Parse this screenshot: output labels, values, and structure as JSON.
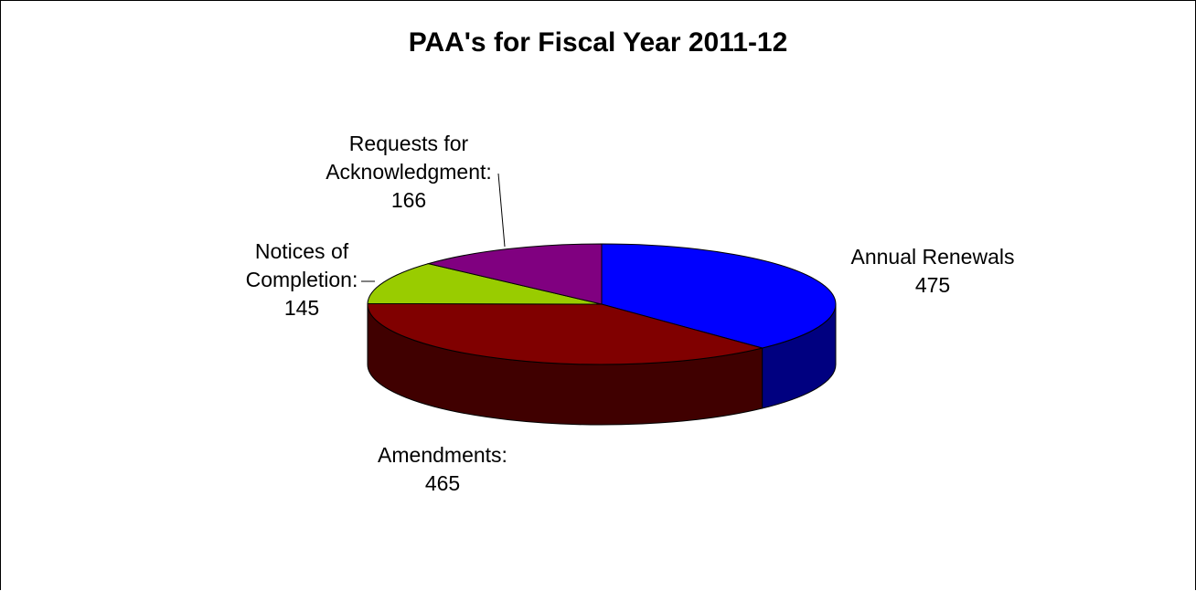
{
  "chart_data": {
    "type": "pie",
    "title": "PAA's for Fiscal Year 2011-12",
    "slices": [
      {
        "label_lines": [
          "Annual Renewals",
          "475"
        ],
        "category": "Annual Renewals",
        "value": 475,
        "color": "#0000FF",
        "side_color": "#000080"
      },
      {
        "label_lines": [
          "Amendments:",
          "465"
        ],
        "category": "Amendments",
        "value": 465,
        "color": "#800000",
        "side_color": "#400000"
      },
      {
        "label_lines": [
          "Notices of",
          "Completion:",
          "145"
        ],
        "category": "Notices of Completion",
        "value": 145,
        "color": "#99CC00",
        "side_color": "#4D6600"
      },
      {
        "label_lines": [
          "Requests for",
          "Acknowledgment:",
          "166"
        ],
        "category": "Requests for Acknowledgment",
        "value": 166,
        "color": "#800080",
        "side_color": "#400040"
      }
    ],
    "style": "3d",
    "legend": "none"
  }
}
